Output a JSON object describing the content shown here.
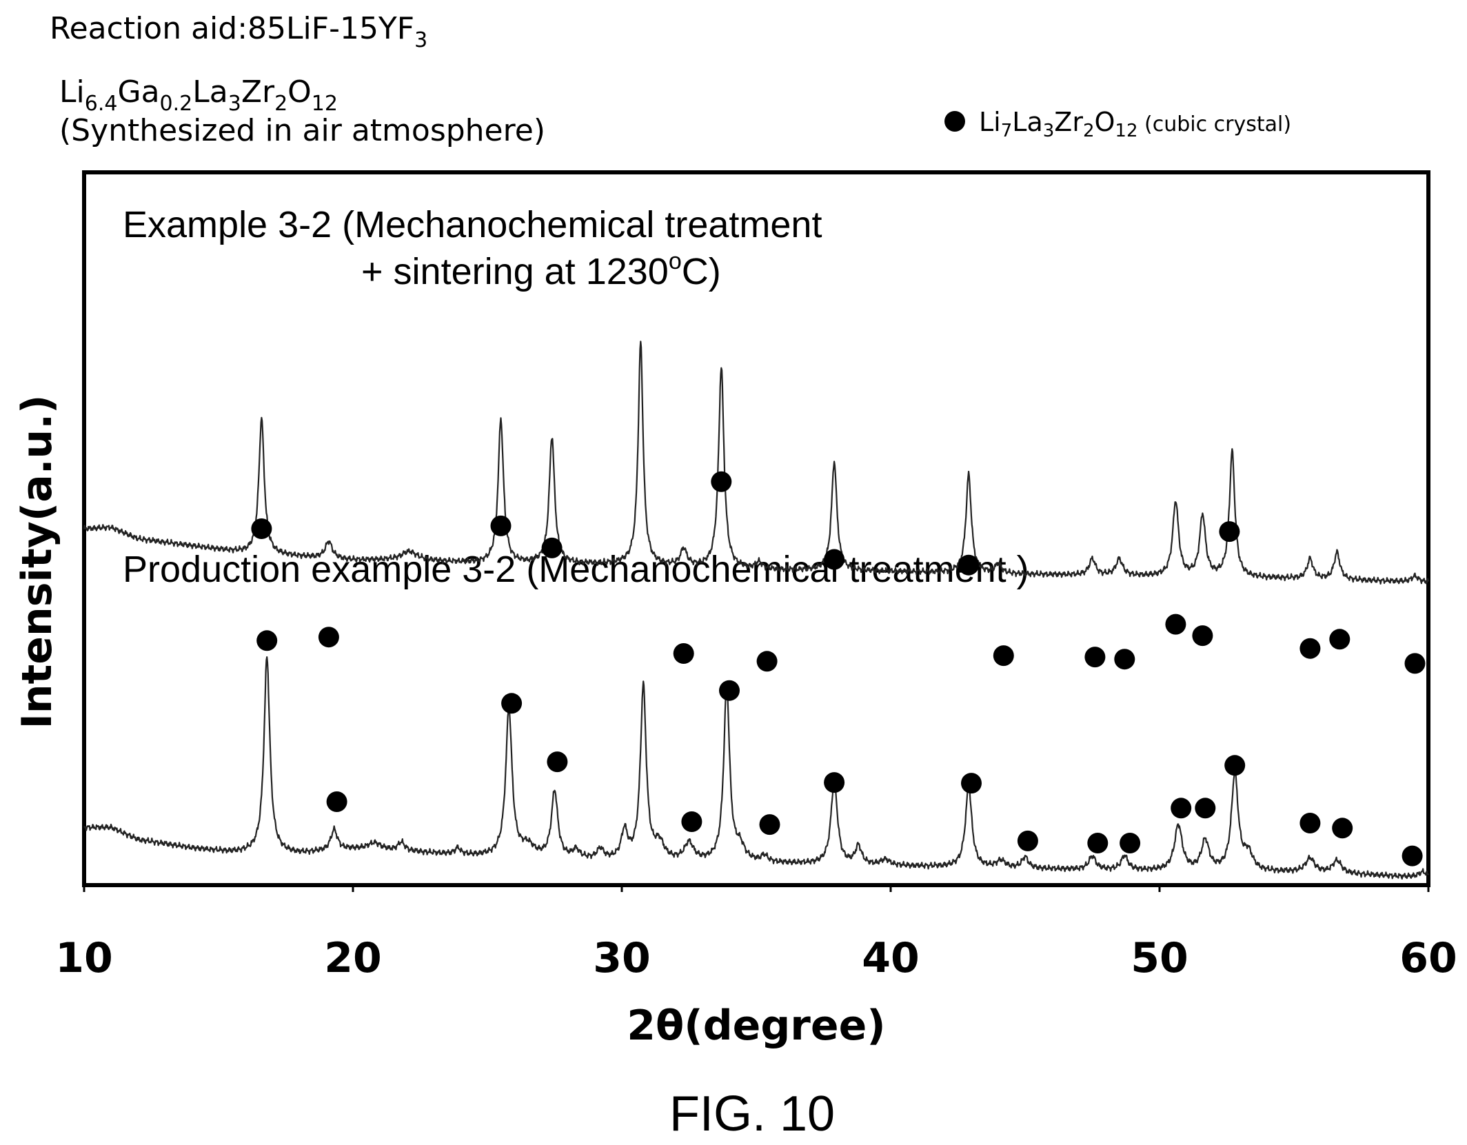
{
  "header": {
    "reaction_aid_label": "Reaction aid:85LiF-15YF",
    "reaction_aid_sub": "3",
    "composition_parts": [
      {
        "t": "Li",
        "sub": false
      },
      {
        "t": "6.4",
        "sub": true
      },
      {
        "t": "Ga",
        "sub": false
      },
      {
        "t": "0.2",
        "sub": true
      },
      {
        "t": "La",
        "sub": false
      },
      {
        "t": "3",
        "sub": true
      },
      {
        "t": "Zr",
        "sub": false
      },
      {
        "t": "2",
        "sub": true
      },
      {
        "t": "O",
        "sub": false
      },
      {
        "t": "12",
        "sub": true
      }
    ],
    "synthesis_note": "(Synthesized in air atmosphere)"
  },
  "legend": {
    "marker_parts": [
      {
        "t": "Li",
        "sub": false
      },
      {
        "t": "7",
        "sub": true
      },
      {
        "t": "La",
        "sub": false
      },
      {
        "t": "3",
        "sub": true
      },
      {
        "t": "Zr",
        "sub": false
      },
      {
        "t": "2",
        "sub": true
      },
      {
        "t": "O",
        "sub": false
      },
      {
        "t": "12",
        "sub": true
      }
    ],
    "marker_note": " (cubic crystal)",
    "position": "top-right"
  },
  "figure_label": "FIG. 10",
  "chart_data": {
    "type": "line",
    "xlabel": "2θ(degree)",
    "ylabel": "Intensity(a.u.)",
    "xlim": [
      10,
      60
    ],
    "xticks": [
      10,
      20,
      30,
      40,
      50,
      60
    ],
    "xtick_labels": [
      "10",
      "20",
      "30",
      "40",
      "50",
      "60"
    ],
    "y_units": "arbitrary",
    "ylim": [
      0,
      100
    ],
    "grid": false,
    "series": [
      {
        "annotation_lines": [
          "Example 3-2 (Mechanochemical treatment",
          "+ sintering at 1230",
          "o",
          "C)"
        ],
        "baseline": [
          [
            10,
            50.0
          ],
          [
            11,
            50.2
          ],
          [
            12,
            48.6
          ],
          [
            14,
            47.6
          ],
          [
            16,
            46.6
          ],
          [
            18,
            46.1
          ],
          [
            20,
            45.6
          ],
          [
            22,
            45.6
          ],
          [
            25,
            45.1
          ],
          [
            30,
            45.0
          ],
          [
            35,
            44.2
          ],
          [
            40,
            44.0
          ],
          [
            45,
            43.6
          ],
          [
            50,
            43.3
          ],
          [
            55,
            43.0
          ],
          [
            60,
            42.5
          ]
        ],
        "peaks": [
          [
            16.6,
            19.0,
            0.12
          ],
          [
            19.1,
            2.4,
            0.15
          ],
          [
            22.1,
            1.2,
            0.35
          ],
          [
            25.5,
            20.2,
            0.12
          ],
          [
            27.4,
            17.8,
            0.12
          ],
          [
            30.7,
            31.1,
            0.11
          ],
          [
            32.3,
            2.4,
            0.14
          ],
          [
            33.7,
            28.2,
            0.12
          ],
          [
            35.1,
            1.0,
            0.15
          ],
          [
            37.9,
            15.3,
            0.12
          ],
          [
            42.9,
            13.8,
            0.12
          ],
          [
            44.0,
            1.3,
            0.14
          ],
          [
            47.5,
            2.3,
            0.14
          ],
          [
            48.5,
            2.3,
            0.15
          ],
          [
            50.6,
            10.5,
            0.13
          ],
          [
            51.6,
            8.6,
            0.13
          ],
          [
            52.7,
            17.6,
            0.12
          ],
          [
            55.6,
            2.8,
            0.13
          ],
          [
            56.6,
            3.8,
            0.13
          ],
          [
            59.5,
            0.8,
            0.15
          ]
        ],
        "markers": [
          [
            16.6,
            50.0
          ],
          [
            19.1,
            34.8
          ],
          [
            25.5,
            50.4
          ],
          [
            27.4,
            47.3
          ],
          [
            32.3,
            32.5
          ],
          [
            33.7,
            56.6
          ],
          [
            35.4,
            31.4
          ],
          [
            37.9,
            45.7
          ],
          [
            42.9,
            44.9
          ],
          [
            44.2,
            32.2
          ],
          [
            47.6,
            32.0
          ],
          [
            48.7,
            31.7
          ],
          [
            50.6,
            36.6
          ],
          [
            51.6,
            35.0
          ],
          [
            52.6,
            49.6
          ],
          [
            55.6,
            33.2
          ],
          [
            56.7,
            34.5
          ],
          [
            59.5,
            31.1
          ]
        ]
      },
      {
        "annotation_lines": [
          "Production example 3-2 (Mechanochemical treatment )"
        ],
        "baseline": [
          [
            10,
            8.1
          ],
          [
            11,
            8.1
          ],
          [
            12,
            6.4
          ],
          [
            14,
            5.2
          ],
          [
            15.5,
            4.6
          ],
          [
            18,
            4.4
          ],
          [
            20,
            5.0
          ],
          [
            22,
            4.7
          ],
          [
            24,
            4.2
          ],
          [
            26,
            3.8
          ],
          [
            30,
            3.4
          ],
          [
            35,
            3.1
          ],
          [
            40,
            2.7
          ],
          [
            45,
            2.3
          ],
          [
            50,
            2.0
          ],
          [
            55,
            1.8
          ],
          [
            58,
            1.4
          ],
          [
            60,
            1.0
          ]
        ],
        "peaks": [
          [
            16.8,
            27.5,
            0.13
          ],
          [
            19.3,
            2.9,
            0.15
          ],
          [
            20.8,
            1.0,
            0.3
          ],
          [
            21.8,
            1.2,
            0.15
          ],
          [
            23.9,
            0.9,
            0.12
          ],
          [
            25.8,
            20.8,
            0.14
          ],
          [
            26.5,
            1.6,
            0.3
          ],
          [
            27.5,
            9.4,
            0.14
          ],
          [
            28.3,
            1.2,
            0.15
          ],
          [
            29.2,
            1.4,
            0.15
          ],
          [
            30.1,
            4.0,
            0.14
          ],
          [
            30.8,
            24.4,
            0.13
          ],
          [
            31.4,
            2.3,
            0.2
          ],
          [
            32.5,
            2.5,
            0.2
          ],
          [
            33.9,
            24.7,
            0.13
          ],
          [
            34.4,
            2.0,
            0.2
          ],
          [
            35.3,
            0.9,
            0.15
          ],
          [
            37.9,
            11.9,
            0.14
          ],
          [
            38.8,
            2.6,
            0.14
          ],
          [
            39.8,
            0.8,
            0.2
          ],
          [
            42.9,
            11.4,
            0.14
          ],
          [
            44.1,
            1.0,
            0.2
          ],
          [
            45.0,
            1.6,
            0.14
          ],
          [
            47.5,
            1.9,
            0.15
          ],
          [
            48.7,
            2.0,
            0.15
          ],
          [
            50.7,
            6.4,
            0.17
          ],
          [
            51.7,
            4.2,
            0.17
          ],
          [
            52.8,
            13.6,
            0.15
          ],
          [
            53.3,
            2.4,
            0.2
          ],
          [
            55.6,
            2.0,
            0.2
          ],
          [
            56.6,
            1.8,
            0.2
          ],
          [
            59.8,
            0.8,
            0.2
          ]
        ],
        "markers": [
          [
            16.8,
            34.3
          ],
          [
            19.4,
            11.7
          ],
          [
            25.9,
            25.5
          ],
          [
            27.6,
            17.3
          ],
          [
            32.6,
            8.9
          ],
          [
            34.0,
            27.3
          ],
          [
            35.5,
            8.5
          ],
          [
            37.9,
            14.4
          ],
          [
            43.0,
            14.3
          ],
          [
            45.1,
            6.2
          ],
          [
            47.7,
            5.9
          ],
          [
            48.9,
            5.9
          ],
          [
            50.8,
            10.8
          ],
          [
            51.7,
            10.8
          ],
          [
            52.8,
            16.8
          ],
          [
            55.6,
            8.7
          ],
          [
            56.8,
            8.0
          ],
          [
            59.4,
            4.1
          ]
        ]
      }
    ]
  }
}
